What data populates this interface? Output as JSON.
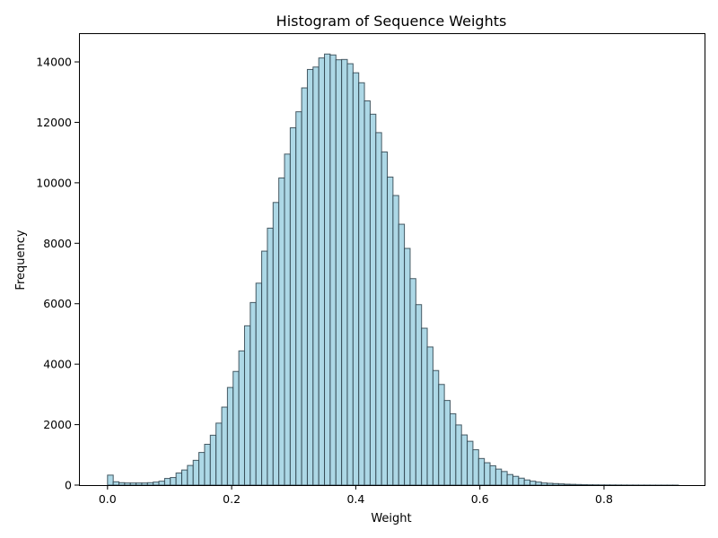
{
  "chart_data": {
    "type": "bar",
    "title": "Histogram of Sequence Weights",
    "xlabel": "Weight",
    "ylabel": "Frequency",
    "xlim": [
      -0.046,
      0.962
    ],
    "ylim": [
      0,
      14950
    ],
    "xticks": [
      0.0,
      0.2,
      0.4,
      0.6,
      0.8
    ],
    "xtick_labels": [
      "0.0",
      "0.2",
      "0.4",
      "0.6",
      "0.8"
    ],
    "yticks": [
      0,
      2000,
      4000,
      6000,
      8000,
      10000,
      12000,
      14000
    ],
    "ytick_labels": [
      "0",
      "2000",
      "4000",
      "6000",
      "8000",
      "10000",
      "12000",
      "14000"
    ],
    "bin_start": 0.0,
    "bin_width": 0.0092,
    "values": [
      330,
      110,
      80,
      70,
      70,
      70,
      70,
      80,
      100,
      130,
      220,
      250,
      400,
      500,
      650,
      820,
      1080,
      1350,
      1650,
      2050,
      2580,
      3230,
      3760,
      4440,
      5270,
      6040,
      6680,
      7740,
      8500,
      9350,
      10160,
      10950,
      11820,
      12350,
      13140,
      13750,
      13830,
      14130,
      14260,
      14230,
      14070,
      14080,
      13940,
      13640,
      13310,
      12710,
      12270,
      11660,
      11020,
      10190,
      9580,
      8630,
      7830,
      6830,
      5970,
      5190,
      4570,
      3790,
      3330,
      2800,
      2360,
      1990,
      1660,
      1450,
      1170,
      880,
      740,
      640,
      530,
      450,
      350,
      290,
      230,
      170,
      130,
      100,
      70,
      60,
      50,
      40,
      30,
      25,
      20,
      15,
      12,
      10,
      8,
      7,
      6,
      5,
      4,
      3,
      3,
      2,
      2,
      1,
      1,
      1,
      1,
      1
    ],
    "grid": false,
    "bar_color": "#add8e6",
    "edge_color": "#2b3f4a"
  }
}
